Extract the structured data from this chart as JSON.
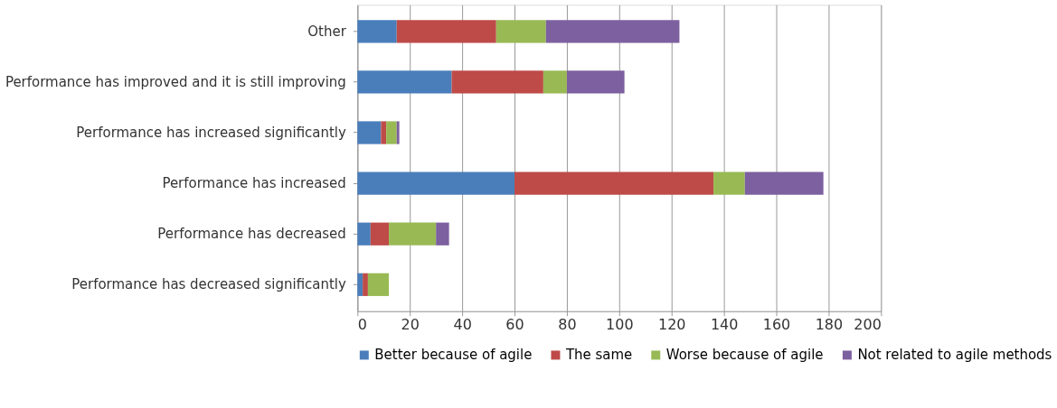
{
  "chart_data": {
    "type": "bar",
    "orientation": "horizontal",
    "stacked": true,
    "categories": [
      "Other",
      "Performance has improved and it is still improving",
      "Performance has increased significantly",
      "Performance has increased",
      "Performance has decreased",
      "Performance has decreased significantly"
    ],
    "series": [
      {
        "name": "Better because of agile",
        "color": "#4a7ebb",
        "values": [
          15,
          36,
          9,
          60,
          5,
          2
        ]
      },
      {
        "name": "The same",
        "color": "#be4b48",
        "values": [
          38,
          35,
          2,
          76,
          7,
          2
        ]
      },
      {
        "name": "Worse because of agile",
        "color": "#98b954",
        "values": [
          19,
          9,
          4,
          12,
          18,
          8
        ]
      },
      {
        "name": "Not related to agile methods",
        "color": "#7d60a0",
        "values": [
          51,
          22,
          1,
          30,
          5,
          0
        ]
      }
    ],
    "xlim": [
      0,
      200
    ],
    "xticks": [
      0,
      20,
      40,
      60,
      80,
      100,
      120,
      140,
      160,
      180,
      200
    ],
    "grid": "x",
    "legend": "bottom"
  }
}
